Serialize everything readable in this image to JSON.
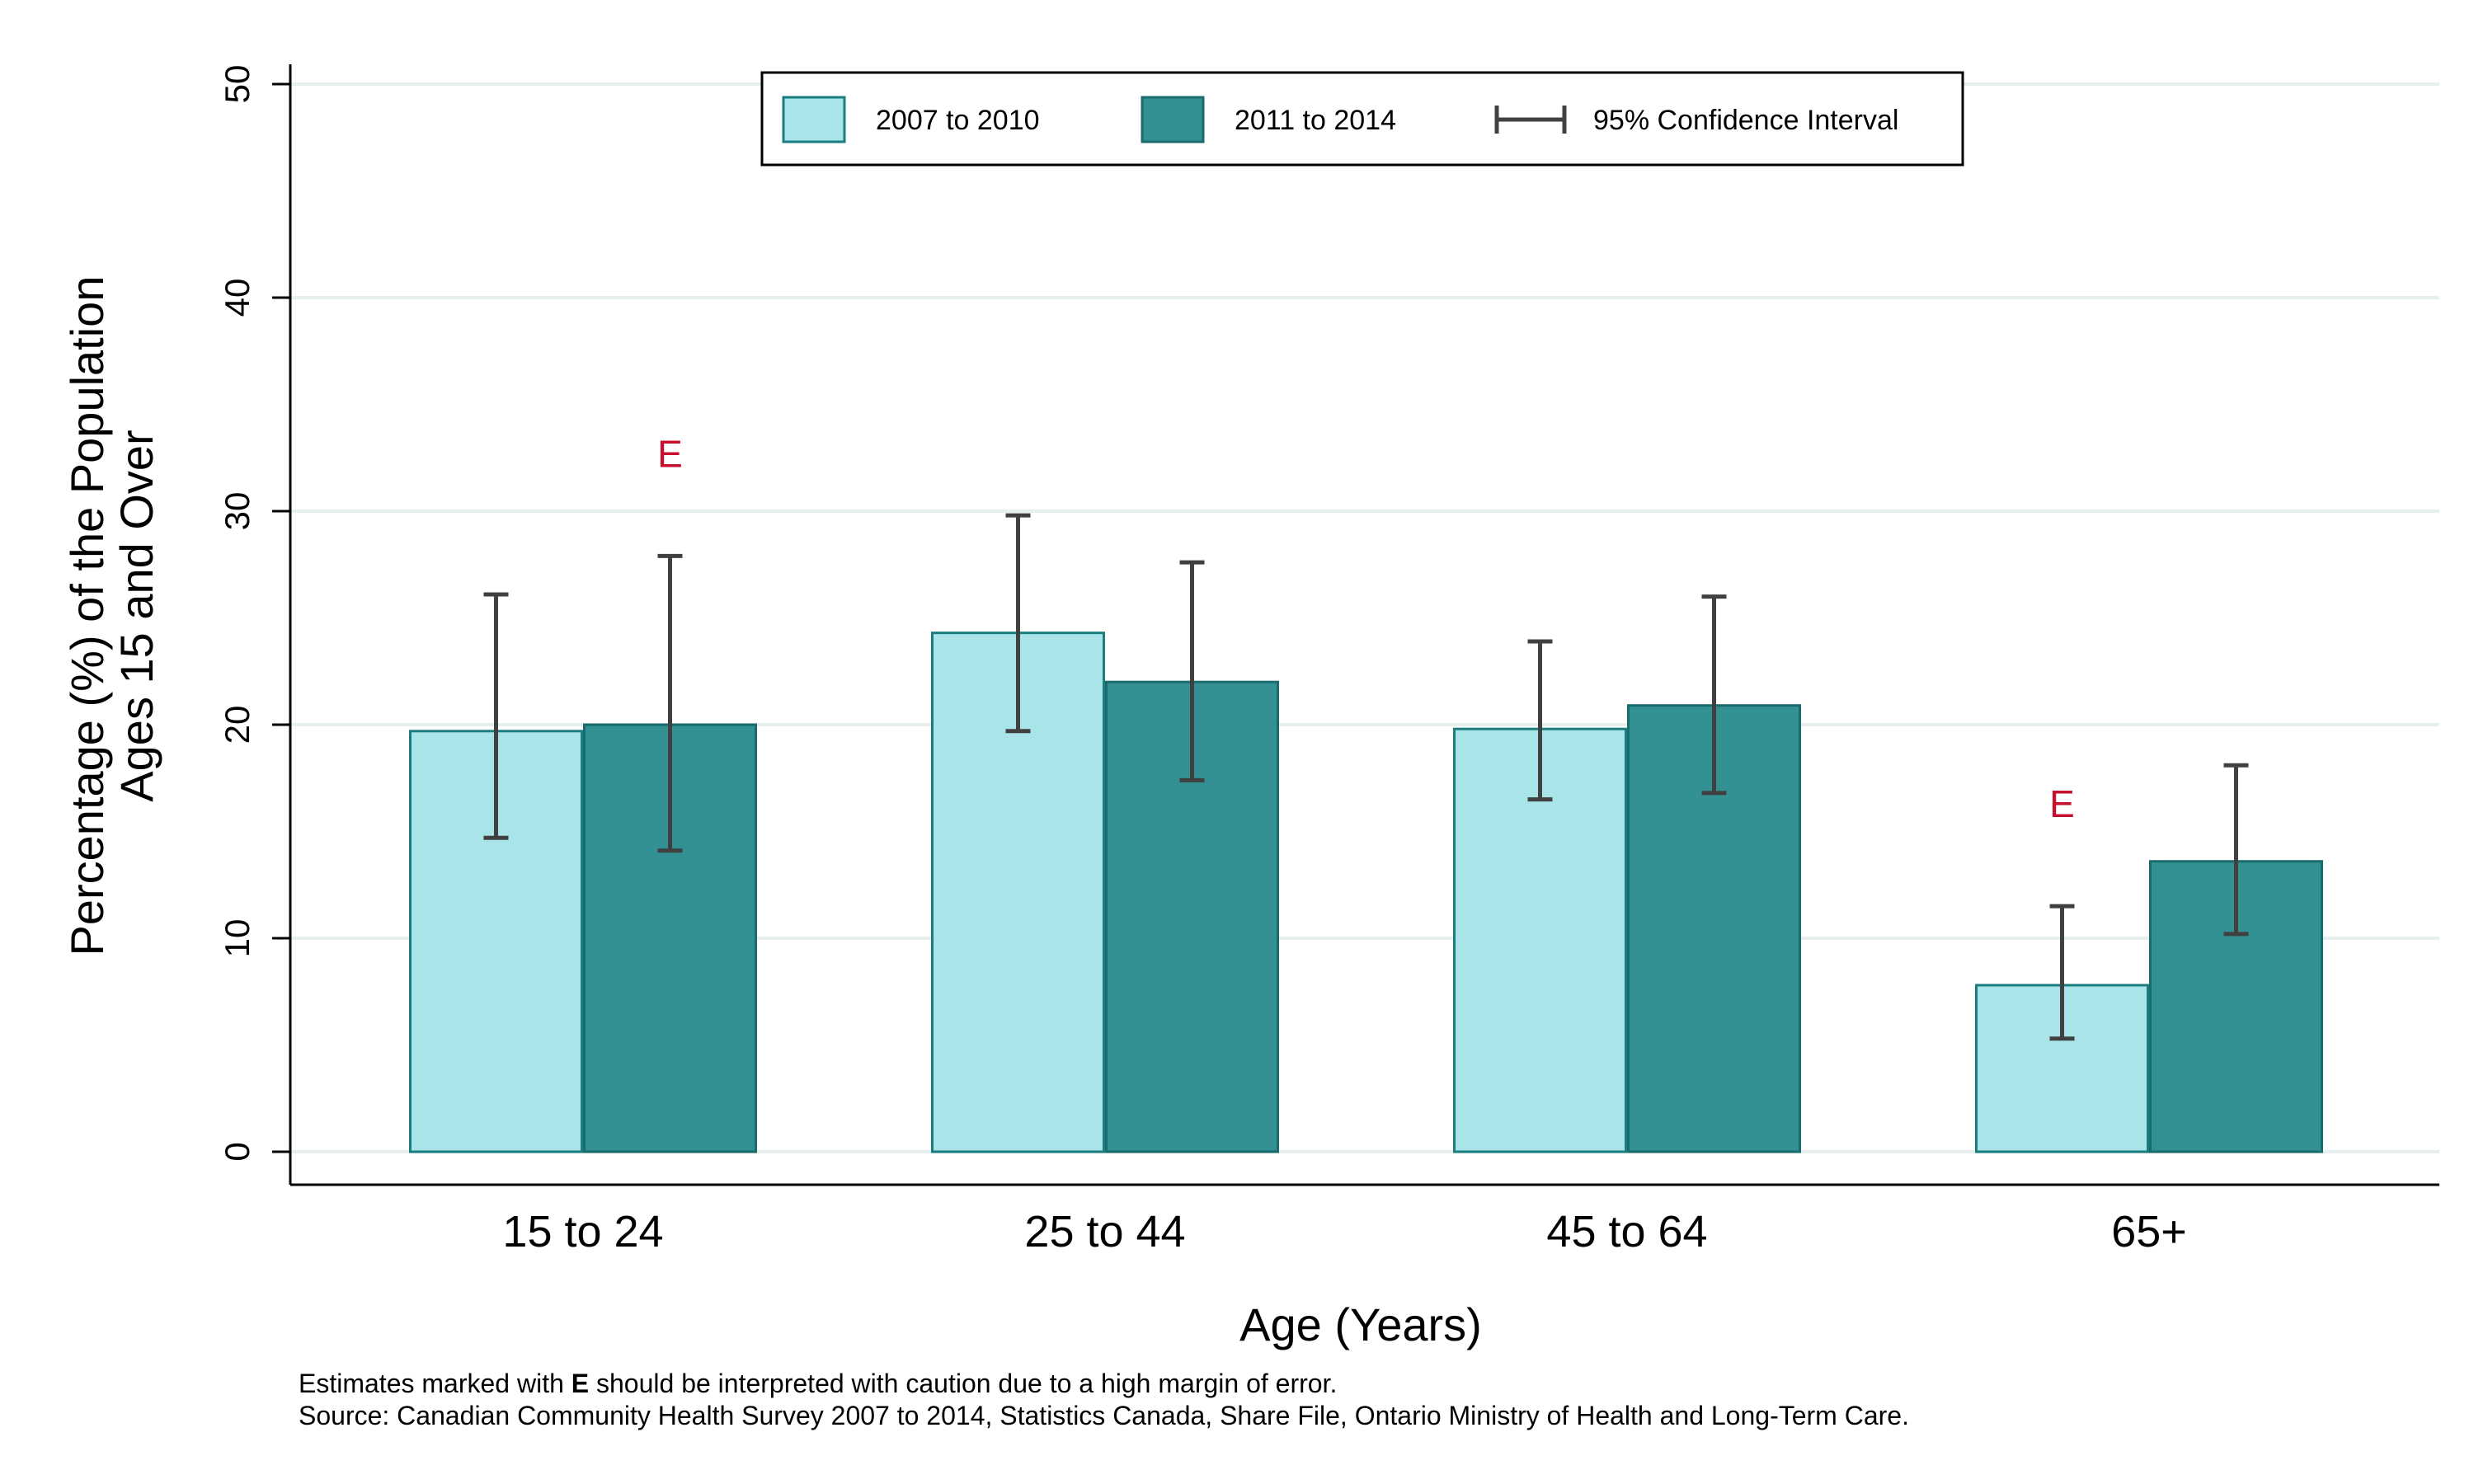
{
  "chart_data": {
    "type": "bar",
    "categories": [
      "15 to 24",
      "25 to 44",
      "45 to 64",
      "65+"
    ],
    "series": [
      {
        "name": "2007 to 2010",
        "color": "#a8e4e8",
        "edge": "#1a7d80",
        "values": [
          19.7,
          24.3,
          19.8,
          7.8
        ],
        "ci_low": [
          14.7,
          19.7,
          16.5,
          5.3
        ],
        "ci_high": [
          26.1,
          29.8,
          23.9,
          11.5
        ],
        "flags": [
          "",
          "",
          "",
          "E"
        ]
      },
      {
        "name": "2011 to 2014",
        "color": "#339194",
        "edge": "#1a6b6e",
        "values": [
          20.0,
          22.0,
          20.9,
          13.6
        ],
        "ci_low": [
          14.1,
          17.4,
          16.8,
          10.2
        ],
        "ci_high": [
          27.9,
          27.6,
          26.0,
          18.1
        ],
        "flags": [
          "E",
          "",
          "",
          ""
        ]
      }
    ],
    "ci_legend": "95% Confidence Interval",
    "xlabel": "Age (Years)",
    "ylabel_line1": "Percentage (%) of the Population",
    "ylabel_line2": "Ages 15 and Over",
    "ylim": [
      0,
      50
    ],
    "yticks": [
      0,
      10,
      20,
      30,
      40,
      50
    ],
    "grid": true,
    "legend_position": "top-center"
  },
  "notes": {
    "caution_prefix": "Estimates marked with ",
    "caution_flag": "E",
    "caution_suffix": " should be interpreted with caution due to a high margin of error.",
    "source": "Source: Canadian Community Health Survey 2007 to 2014, Statistics Canada, Share File, Ontario Ministry of Health and Long-Term Care."
  }
}
